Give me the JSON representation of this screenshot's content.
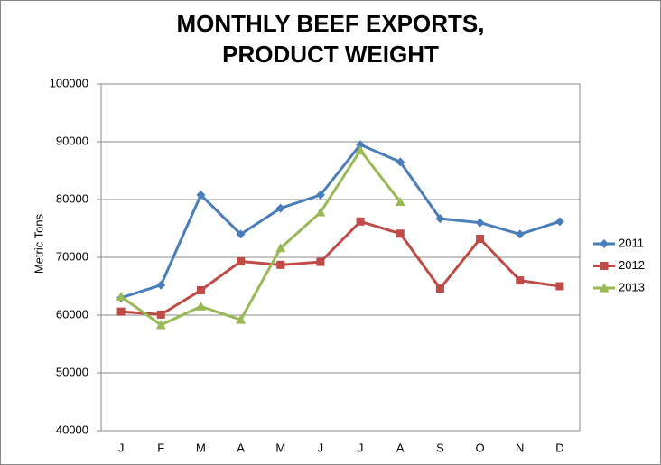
{
  "chart_data": {
    "type": "line",
    "title": "MONTHLY BEEF EXPORTS, PRODUCT WEIGHT",
    "ylabel": "Metric Tons",
    "categories": [
      "J",
      "F",
      "M",
      "A",
      "M",
      "J",
      "J",
      "A",
      "S",
      "O",
      "N",
      "D"
    ],
    "series": [
      {
        "name": "2011",
        "color": "#4a7ebb",
        "marker": "diamond",
        "values": [
          63000,
          65200,
          80800,
          74000,
          78500,
          80800,
          89500,
          86500,
          76700,
          76000,
          74000,
          76200
        ]
      },
      {
        "name": "2012",
        "color": "#be4b48",
        "marker": "square",
        "values": [
          60600,
          60100,
          64300,
          69300,
          68700,
          69200,
          76200,
          74100,
          64600,
          73200,
          66000,
          65000
        ]
      },
      {
        "name": "2013",
        "color": "#98b954",
        "marker": "triangle",
        "values": [
          63200,
          58300,
          61500,
          59200,
          71600,
          77800,
          88500,
          79600,
          null,
          null,
          null,
          null
        ]
      }
    ],
    "ylim": [
      40000,
      100000
    ],
    "yticks": [
      40000,
      50000,
      60000,
      70000,
      80000,
      90000,
      100000
    ],
    "grid": true,
    "legend": "right"
  }
}
